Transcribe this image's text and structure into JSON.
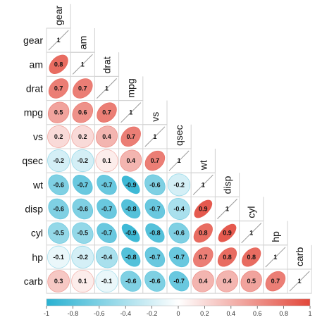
{
  "chart_data": {
    "type": "heatmap",
    "variables": [
      "gear",
      "am",
      "drat",
      "mpg",
      "vs",
      "qsec",
      "wt",
      "disp",
      "cyl",
      "hp",
      "carb"
    ],
    "coefficients": [
      [
        1
      ],
      [
        0.8,
        1
      ],
      [
        0.7,
        0.7,
        1
      ],
      [
        0.5,
        0.6,
        0.7,
        1
      ],
      [
        0.2,
        0.2,
        0.4,
        0.7,
        1
      ],
      [
        -0.2,
        -0.2,
        0.1,
        0.4,
        0.7,
        1
      ],
      [
        -0.6,
        -0.7,
        -0.7,
        -0.9,
        -0.6,
        -0.2,
        1
      ],
      [
        -0.6,
        -0.6,
        -0.7,
        -0.8,
        -0.7,
        -0.4,
        0.9,
        1
      ],
      [
        -0.5,
        -0.5,
        -0.7,
        -0.9,
        -0.8,
        -0.6,
        0.8,
        0.9,
        1
      ],
      [
        -0.1,
        -0.2,
        -0.4,
        -0.8,
        -0.7,
        -0.7,
        0.7,
        0.8,
        0.8,
        1
      ],
      [
        0.3,
        0.1,
        -0.1,
        -0.6,
        -0.6,
        -0.7,
        0.4,
        0.4,
        0.5,
        0.7,
        1
      ]
    ],
    "labels": [
      [
        "1"
      ],
      [
        "0.8",
        "1"
      ],
      [
        "0.7",
        "0.7",
        "1"
      ],
      [
        "0.5",
        "0.6",
        "0.7",
        "1"
      ],
      [
        "0.2",
        "0.2",
        "0.4",
        "0.7",
        "1"
      ],
      [
        "-0.2",
        "-0.2",
        "0.1",
        "0.4",
        "0.7",
        "1"
      ],
      [
        "-0.6",
        "-0.7",
        "-0.7",
        "-0.9",
        "-0.6",
        "-0.2",
        "1"
      ],
      [
        "-0.6",
        "-0.6",
        "-0.7",
        "-0.8",
        "-0.7",
        "-0.4",
        "0.9",
        "1"
      ],
      [
        "-0.5",
        "-0.5",
        "-0.7",
        "-0.9",
        "-0.8",
        "-0.6",
        "0.8",
        "0.9",
        "1"
      ],
      [
        "-0.1",
        "-0.2",
        "-0.4",
        "-0.8",
        "-0.7",
        "-0.7",
        "0.7",
        "0.8",
        "0.8",
        "1"
      ],
      [
        "0.3",
        "0.1",
        "-0.1",
        "-0.6",
        "-0.6",
        "-0.7",
        "0.4",
        "0.4",
        "0.5",
        "0.7",
        "1"
      ]
    ],
    "colorbar": {
      "range": [
        -1,
        1
      ],
      "ticks": [
        -1,
        -0.8,
        -0.6,
        -0.4,
        -0.2,
        0,
        0.2,
        0.4,
        0.6,
        0.8,
        1
      ],
      "tick_labels": [
        "-1",
        "-0.8",
        "-0.6",
        "-0.4",
        "-0.2",
        "0",
        "0.2",
        "0.4",
        "0.6",
        "0.8",
        "1"
      ],
      "negative_color": "#29B1D1",
      "mid_color": "#FFFFFF",
      "positive_color": "#E2473A",
      "placement": "bottom"
    },
    "title": "",
    "xlabel": "",
    "ylabel": ""
  }
}
